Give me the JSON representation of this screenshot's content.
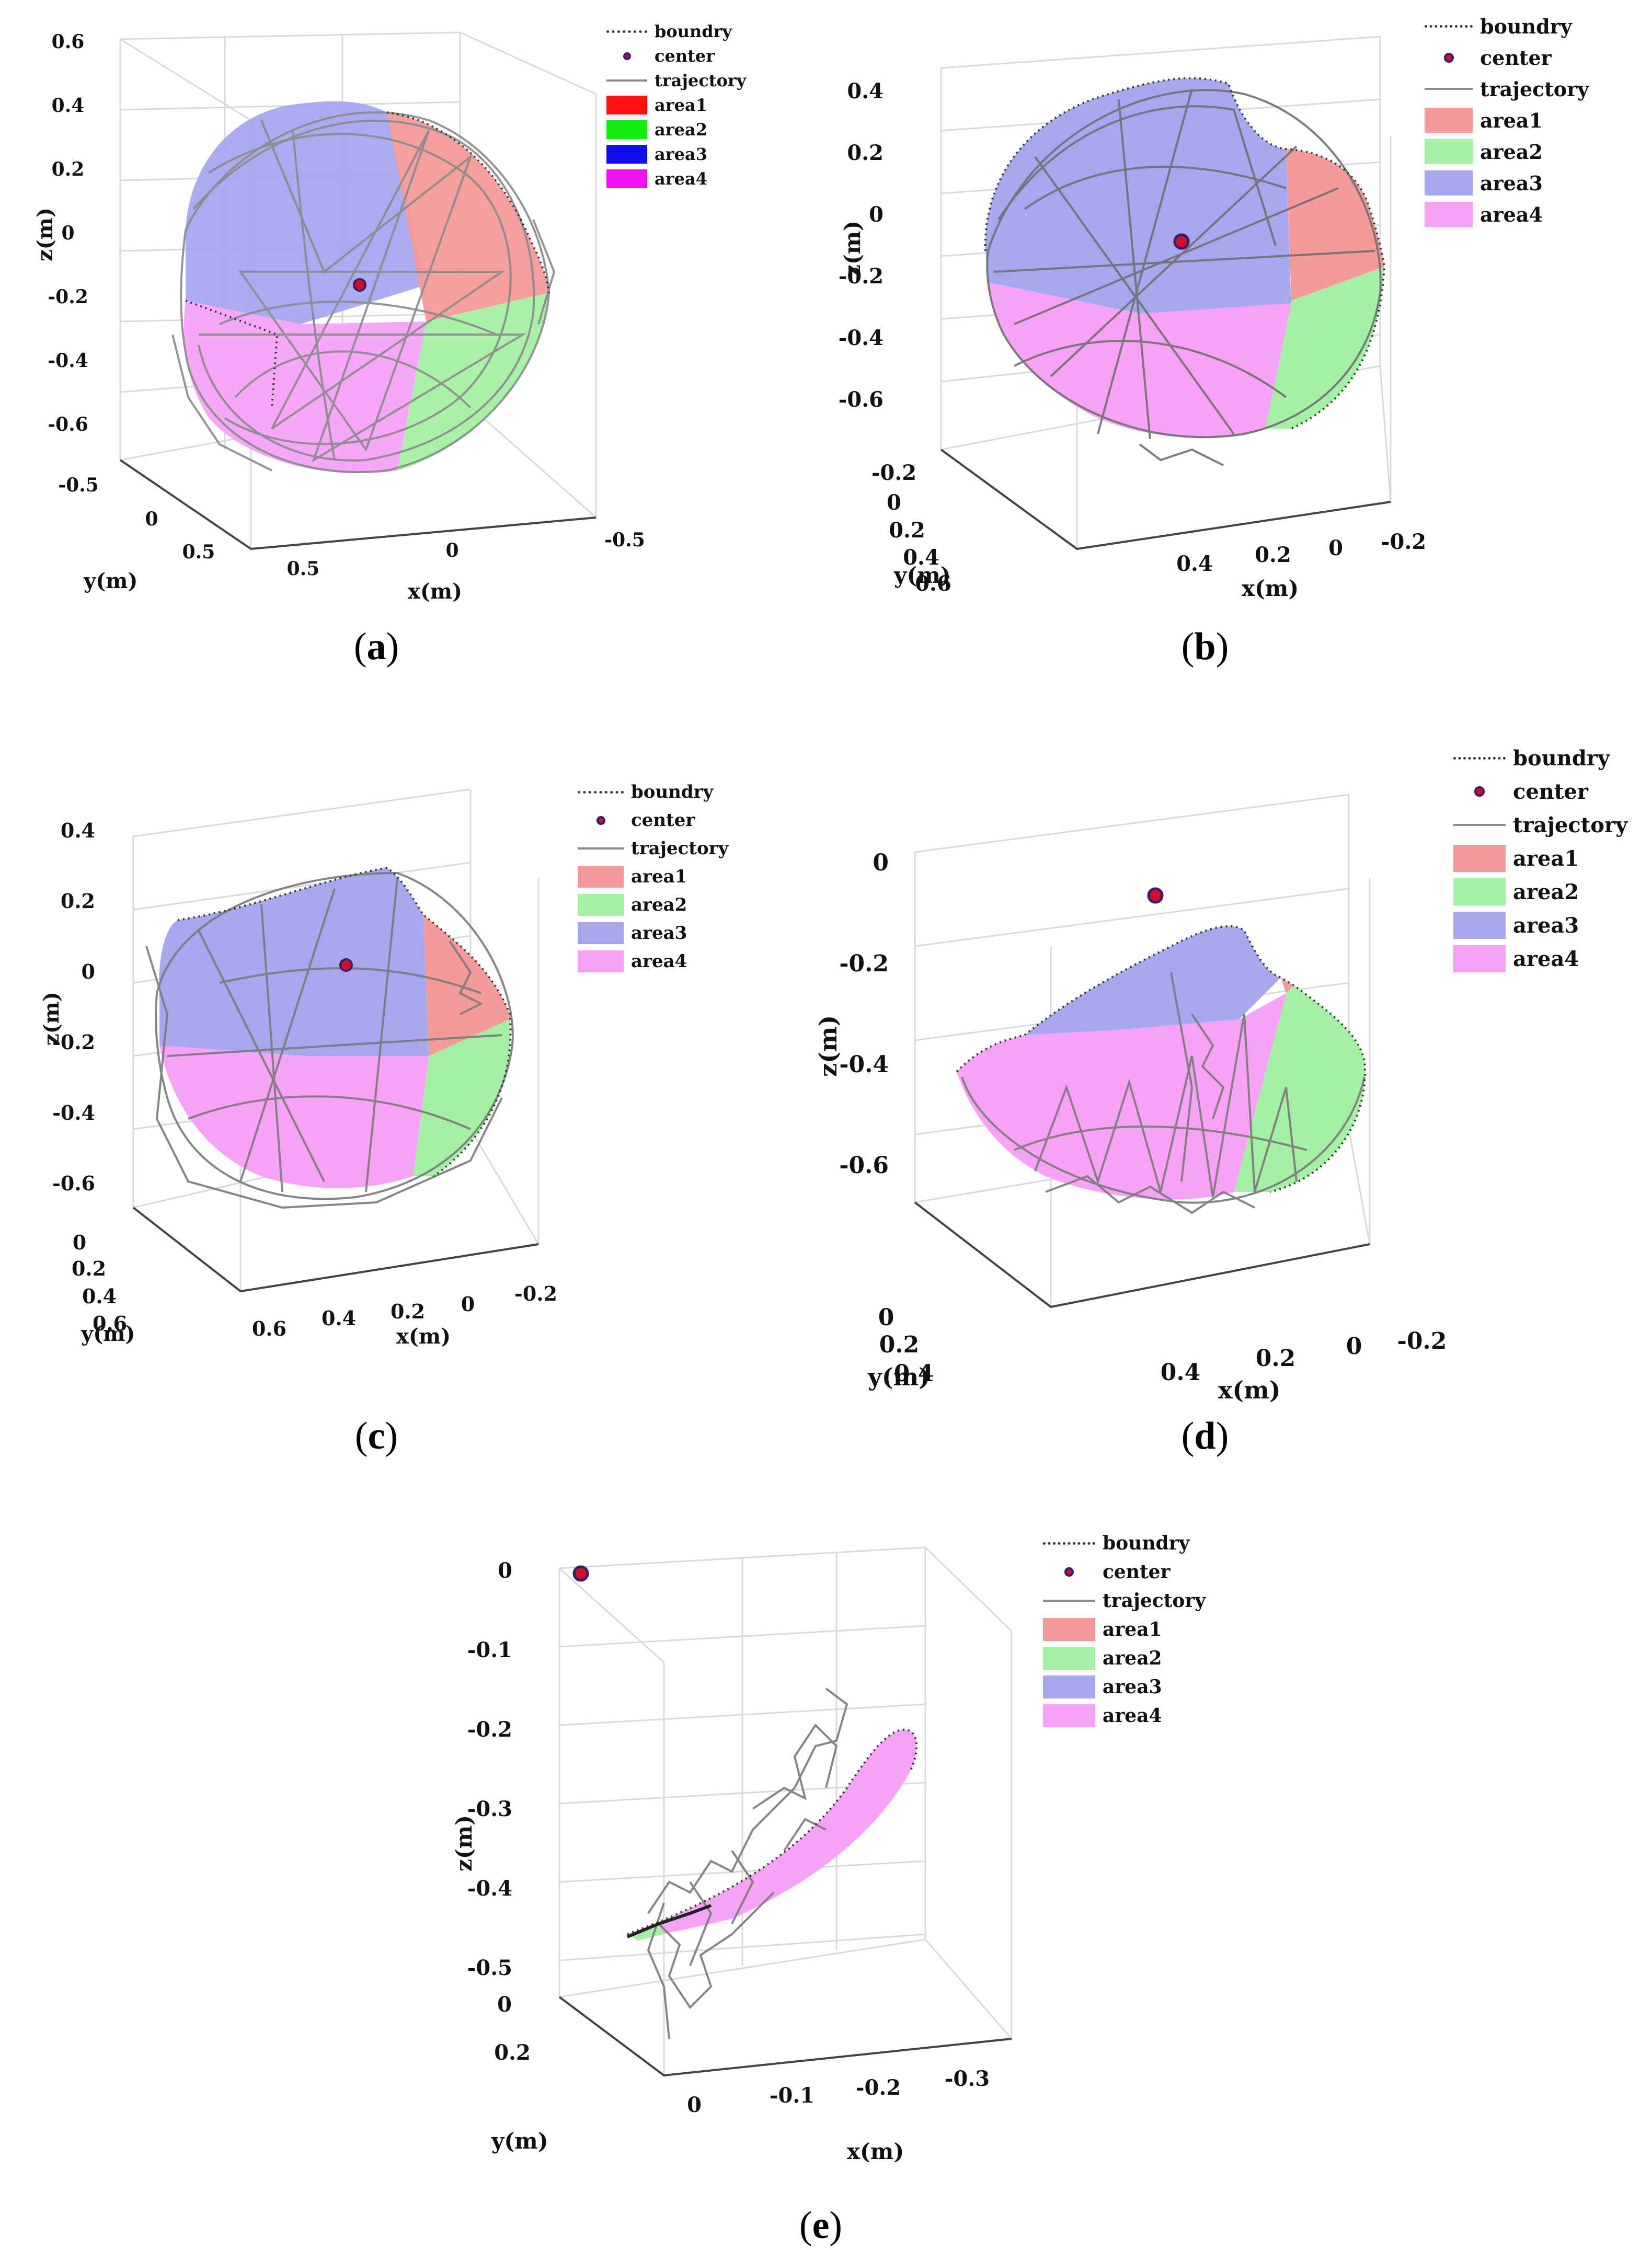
{
  "colors": {
    "boundary": "#333333",
    "center_fill": "#d0102a",
    "center_stroke": "#3a1a6a",
    "trajectory": "#8a8a8a",
    "area1": "#f59a9a",
    "area2": "#a4f0a4",
    "area3": "#a7a7f0",
    "area4": "#f7a2f7",
    "grid": "#d9d9d9",
    "axis": "#333333"
  },
  "chart_data": [
    {
      "id": "a",
      "type": "3d-surface-scatter",
      "caption": "a",
      "xlabel": "x(m)",
      "ylabel": "y(m)",
      "zlabel": "z(m)",
      "xlim": [
        -0.5,
        0.5
      ],
      "ylim": [
        -0.5,
        0.5
      ],
      "zlim": [
        -0.6,
        0.6
      ],
      "x_ticks": [
        "0.5",
        "0",
        "-0.5"
      ],
      "y_ticks": [
        "-0.5",
        "0",
        "0.5"
      ],
      "z_ticks": [
        "0.6",
        "0.4",
        "0.2",
        "0",
        "-0.2",
        "-0.4",
        "-0.6"
      ],
      "legend": [
        "boundry",
        "center",
        "trajectory",
        "area1",
        "area2",
        "area3",
        "area4"
      ],
      "legend_area_colors": [
        "#ff1010",
        "#10ee10",
        "#1010ee",
        "#ee10ee"
      ],
      "center": {
        "x": 0,
        "y": 0,
        "z": 0
      }
    },
    {
      "id": "b",
      "type": "3d-surface-scatter",
      "caption": "b",
      "xlabel": "x(m)",
      "ylabel": "y(m)",
      "zlabel": "z(m)",
      "x_ticks": [
        "0.4",
        "0.2",
        "0",
        "-0.2"
      ],
      "y_ticks": [
        "-0.2",
        "0",
        "0.2",
        "0.4",
        "0.6"
      ],
      "z_ticks": [
        "0.4",
        "0.2",
        "0",
        "-0.2",
        "-0.4",
        "-0.6"
      ],
      "legend": [
        "boundry",
        "center",
        "trajectory",
        "area1",
        "area2",
        "area3",
        "area4"
      ],
      "center": {
        "x": 0,
        "y": 0,
        "z": 0
      }
    },
    {
      "id": "c",
      "type": "3d-surface-scatter",
      "caption": "c",
      "xlabel": "x(m)",
      "ylabel": "y(m)",
      "zlabel": "z(m)",
      "x_ticks": [
        "0.6",
        "0.4",
        "0.2",
        "0",
        "-0.2"
      ],
      "y_ticks": [
        "0",
        "0.2",
        "0.4",
        "0.6"
      ],
      "z_ticks": [
        "0.4",
        "0.2",
        "0",
        "-0.2",
        "-0.4",
        "-0.6"
      ],
      "legend": [
        "boundry",
        "center",
        "trajectory",
        "area1",
        "area2",
        "area3",
        "area4"
      ],
      "center": {
        "x": 0,
        "y": 0,
        "z": 0
      }
    },
    {
      "id": "d",
      "type": "3d-surface-scatter",
      "caption": "d",
      "xlabel": "x(m)",
      "ylabel": "y(m)",
      "zlabel": "z(m)",
      "x_ticks": [
        "0.4",
        "0.2",
        "0",
        "-0.2"
      ],
      "y_ticks": [
        "0",
        "0.2",
        "0.4"
      ],
      "z_ticks": [
        "0",
        "-0.2",
        "-0.4",
        "-0.6"
      ],
      "legend": [
        "boundry",
        "center",
        "trajectory",
        "area1",
        "area2",
        "area3",
        "area4"
      ],
      "center": {
        "x": 0,
        "y": 0,
        "z": 0
      }
    },
    {
      "id": "e",
      "type": "3d-surface-scatter",
      "caption": "e",
      "xlabel": "x(m)",
      "ylabel": "y(m)",
      "zlabel": "z(m)",
      "x_ticks": [
        "0",
        "-0.1",
        "-0.2",
        "-0.3"
      ],
      "y_ticks": [
        "0",
        "0.2"
      ],
      "z_ticks": [
        "0",
        "-0.1",
        "-0.2",
        "-0.3",
        "-0.4",
        "-0.5"
      ],
      "legend": [
        "boundry",
        "center",
        "trajectory",
        "area1",
        "area2",
        "area3",
        "area4"
      ],
      "center": {
        "x": 0,
        "y": 0,
        "z": 0
      }
    }
  ]
}
